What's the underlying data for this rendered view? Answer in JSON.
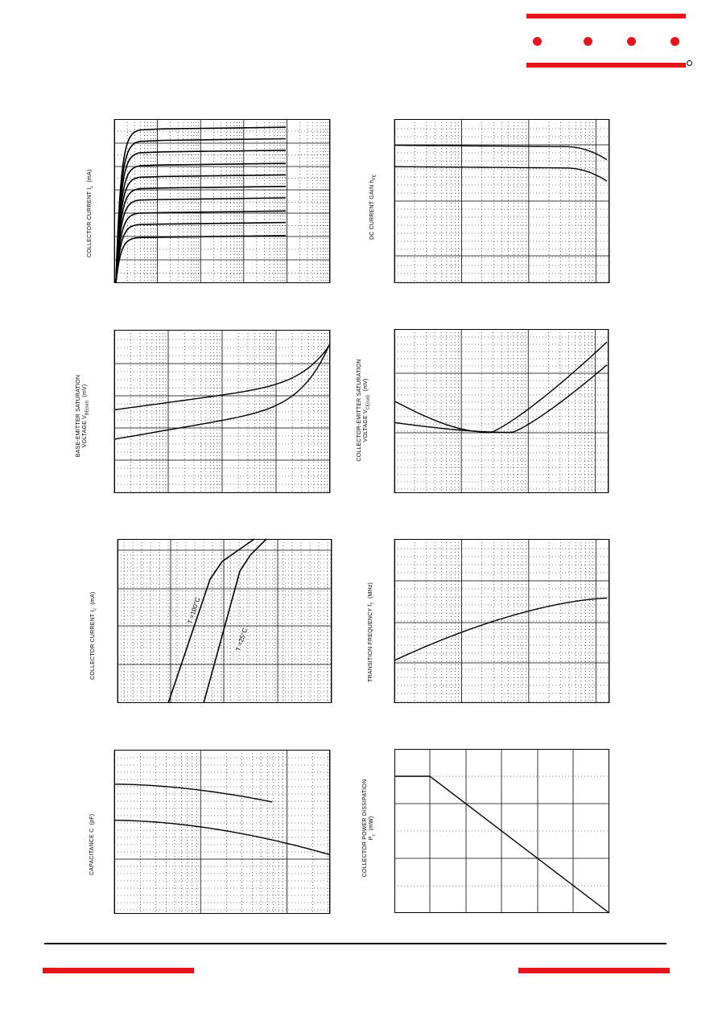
{
  "logo": {
    "dot_count": 4,
    "brand_color": "#e8141c",
    "mark": "registered-ring"
  },
  "colors": {
    "accent": "#e8141c",
    "ink": "#000000",
    "grid": "#000000"
  },
  "charts": {
    "c1": {
      "ylabel": [
        "COLLECTOR CURRENT   I",
        "c",
        "(mA)"
      ]
    },
    "c2": {
      "ylabel": [
        "DC CURRENT GAIN   h",
        "FE"
      ]
    },
    "c3": {
      "ylabel_line1": "BASE-EMITTER SATURATION",
      "ylabel_line2": [
        "VOLTAGE   V",
        "BE(sat)",
        "(mV)"
      ]
    },
    "c4": {
      "ylabel_line1": "COLLECTOR-EMITTER SATURATION",
      "ylabel_line2": [
        "VOLTAGE   V",
        "CE(sat)",
        "(mV)"
      ]
    },
    "c5": {
      "ylabel": [
        "COLLECTOR CURRENT   I",
        "c",
        "(mA)"
      ],
      "annot_hot": "T =100",
      "annot_hot_sub": "a",
      "annot_room": "T =25",
      "annot_room_sub": "a",
      "deg": "°C"
    },
    "c6": {
      "ylabel": [
        "TRANSITION FREQUENCY   f",
        "T",
        "(MHz)"
      ]
    },
    "c7": {
      "ylabel": [
        "CAPACITANCE   C",
        "(pF)"
      ]
    },
    "c8": {
      "ylabel_line1": "COLLECTOR POWER DISSIPATION",
      "ylabel_line2": [
        "P",
        "c",
        "(mW)"
      ]
    }
  },
  "chart_data": [
    {
      "type": "line",
      "panel": "output-characteristics",
      "note": "family of Ic vs Vce curves for stepped base current",
      "series": [
        {
          "values": [
            0.28
          ]
        },
        {
          "values": [
            0.36
          ]
        },
        {
          "values": [
            0.43
          ]
        },
        {
          "values": [
            0.51
          ]
        },
        {
          "values": [
            0.58
          ]
        },
        {
          "values": [
            0.65
          ]
        },
        {
          "values": [
            0.72
          ]
        },
        {
          "values": [
            0.8
          ]
        },
        {
          "values": [
            0.87
          ]
        },
        {
          "values": [
            0.94
          ]
        }
      ]
    },
    {
      "type": "line",
      "panel": "dc-current-gain",
      "series": [
        {
          "values": [
            0.84,
            0.84,
            0.83,
            0.76
          ]
        },
        {
          "values": [
            0.71,
            0.71,
            0.7,
            0.64
          ]
        }
      ]
    },
    {
      "type": "line",
      "panel": "vbe-sat",
      "series": [
        {
          "values": [
            0.51,
            0.66,
            0.98
          ]
        },
        {
          "values": [
            0.33,
            0.52,
            0.98
          ]
        }
      ]
    },
    {
      "type": "line",
      "panel": "vce-sat",
      "series": [
        {
          "values": [
            0.43,
            0.37,
            0.92
          ]
        },
        {
          "values": [
            0.56,
            0.37,
            0.79
          ]
        }
      ]
    },
    {
      "type": "line",
      "panel": "transfer-characteristics",
      "series": [
        {
          "name": "Ta=100°C"
        },
        {
          "name": "Ta=25°C"
        }
      ]
    },
    {
      "type": "line",
      "panel": "transition-frequency",
      "series": [
        {
          "values": [
            0.26,
            0.48,
            0.64
          ]
        }
      ]
    },
    {
      "type": "line",
      "panel": "capacitance",
      "series": [
        {
          "values": [
            0.79,
            0.78,
            0.7
          ]
        },
        {
          "values": [
            0.57,
            0.55,
            0.37
          ]
        }
      ]
    },
    {
      "type": "line",
      "panel": "power-derating",
      "series": [
        {
          "values": [
            0.83,
            0.83,
            0.0
          ]
        }
      ]
    }
  ]
}
